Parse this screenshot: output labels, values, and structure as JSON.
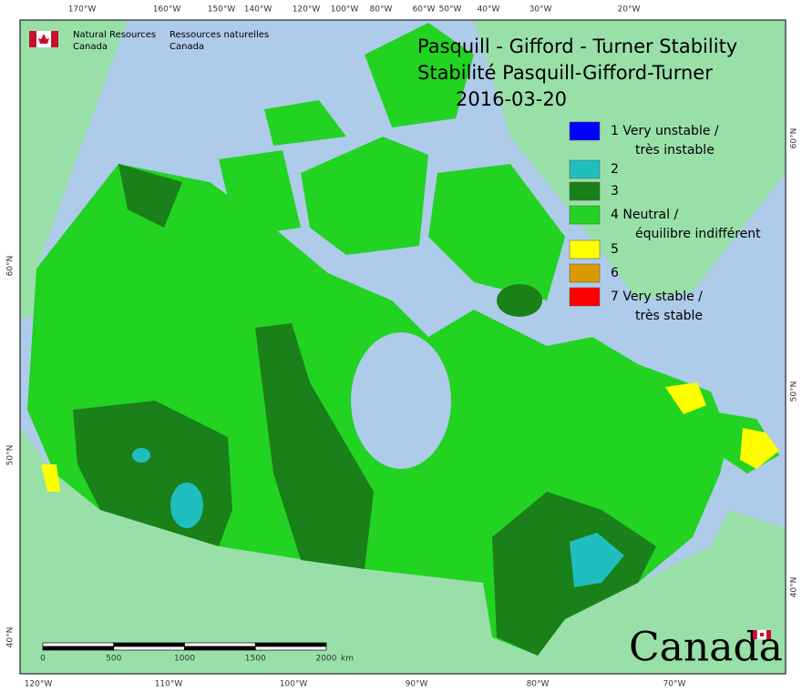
{
  "header": {
    "agency_en": [
      "Natural Resources",
      "Canada"
    ],
    "agency_fr": [
      "Ressources naturelles",
      "Canada"
    ]
  },
  "title": [
    "Pasquill - Gifford - Turner Stability",
    "Stabilité Pasquill-Gifford-Turner",
    "2016-03-20"
  ],
  "legend": [
    {
      "label": [
        "1 Very unstable /",
        "très instable"
      ],
      "color": "#0000ff"
    },
    {
      "label": [
        "2"
      ],
      "color": "#1fbfbf"
    },
    {
      "label": [
        "3"
      ],
      "color": "#1a801a"
    },
    {
      "label": [
        "4 Neutral /",
        "équilibre indifférent"
      ],
      "color": "#22d322"
    },
    {
      "label": [
        "5"
      ],
      "color": "#ffff00"
    },
    {
      "label": [
        "6"
      ],
      "color": "#d99a00"
    },
    {
      "label": [
        "7 Very stable /",
        "très stable"
      ],
      "color": "#ff0000"
    }
  ],
  "top_longitudes": [
    "170°W",
    "160°W",
    "150°W",
    "140°W",
    "120°W",
    "100°W",
    "80°W",
    "60°W",
    "50°W",
    "40°W",
    "30°W",
    "20°W"
  ],
  "bottom_longitudes": [
    "120°W",
    "110°W",
    "100°W",
    "90°W",
    "80°W",
    "70°W"
  ],
  "left_latitudes": [
    "60°N",
    "50°N",
    "40°N"
  ],
  "right_latitudes": [
    "60°N",
    "50°N",
    "40°N"
  ],
  "scale_bar": {
    "ticks": [
      "0",
      "500",
      "1000",
      "1500",
      "2000"
    ],
    "unit": "km"
  },
  "wordmark": "Canada"
}
